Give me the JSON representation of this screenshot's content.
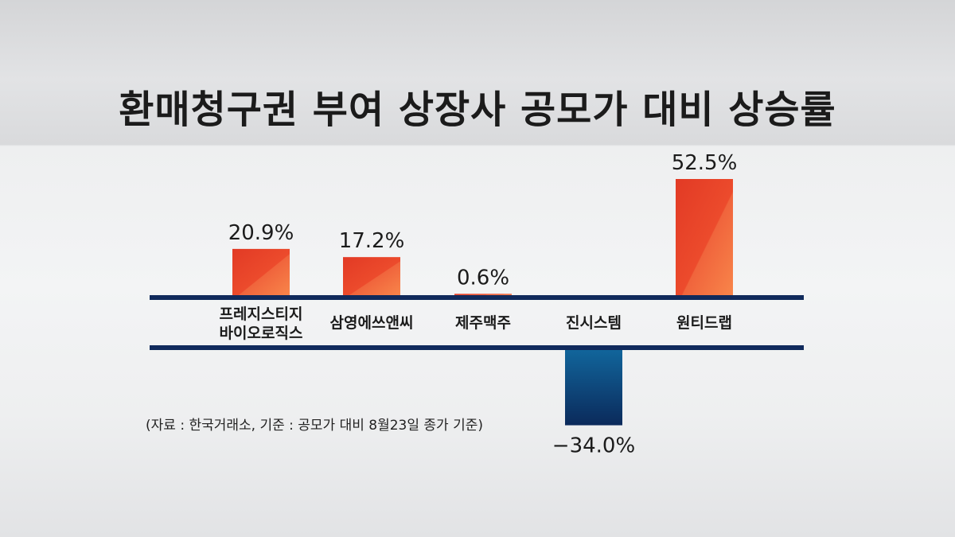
{
  "title": "환매청구권 부여 상장사 공모가 대비 상승률",
  "source_note": "(자료 : 한국거래소, 기준 : 공모가 대비 8월23일 종가 기준)",
  "colors": {
    "positive_top": "#e8412a",
    "positive_bottom": "#f46a3a",
    "negative_top": "#0f5c8e",
    "negative_bottom": "#0a2a5a",
    "baseline": "#102a5c",
    "text": "#1b1b1b"
  },
  "chart_data": {
    "type": "bar",
    "title": "환매청구권 부여 상장사 공모가 대비 상승률",
    "categories": [
      "프레지스티지\n바이오로직스",
      "삼영에쓰앤씨",
      "제주맥주",
      "진시스템",
      "원티드랩"
    ],
    "values": [
      20.9,
      17.2,
      0.6,
      -34.0,
      52.5
    ],
    "value_labels": [
      "20.9%",
      "17.2%",
      "0.6%",
      "−34.0%",
      "52.5%"
    ],
    "unit": "%",
    "xlabel": "",
    "ylabel": "",
    "grid": false,
    "legend": "none"
  }
}
